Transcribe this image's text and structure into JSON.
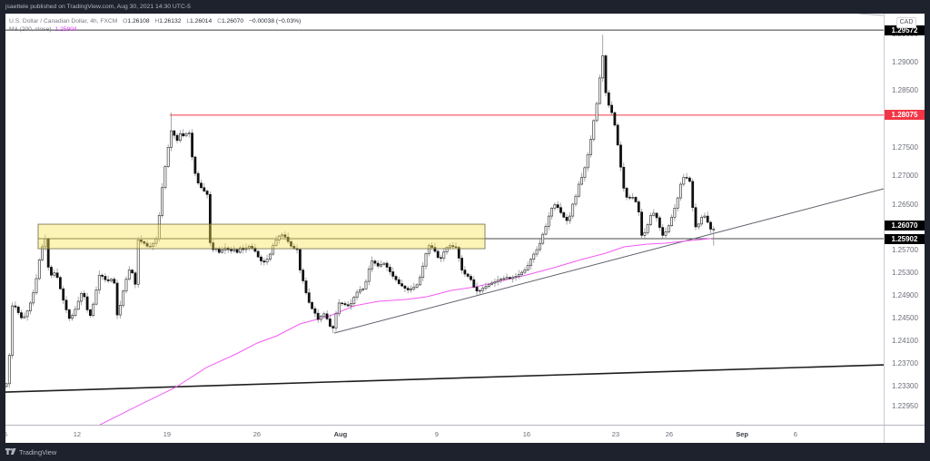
{
  "header": {
    "published": "jsaettele published on TradingView.com, Aug 30, 2021 14:30 UTC-5"
  },
  "legend": {
    "symbol": "U.S. Dollar / Canadian Dollar, 4h, FXCM",
    "ohlc": [
      {
        "k": "O",
        "v": "1.26108"
      },
      {
        "k": "H",
        "v": "1.26132"
      },
      {
        "k": "L",
        "v": "1.26014"
      },
      {
        "k": "C",
        "v": "1.26070"
      }
    ],
    "change": "−0.00038 (−0.03%)",
    "ma_label": "MA (200, close)",
    "ma_value": "1.25904"
  },
  "currency": "CAD",
  "footer": {
    "brand": "TradingView"
  },
  "colors": {
    "frame": "#1e222d",
    "up_body": "#ffffff",
    "up_border": "#222222",
    "down_body": "#111111",
    "wick": "#8f929b",
    "ma": "#f45af4",
    "resistance": "#f23645"
  },
  "chart_data": {
    "type": "candlestick",
    "title": "U.S. Dollar / Canadian Dollar, 4h, FXCM",
    "timeframe": "4h",
    "last": {
      "open": 1.26108,
      "high": 1.26132,
      "low": 1.26014,
      "close": 1.2607,
      "change": -0.00038,
      "change_pct": -0.03
    },
    "ylim": [
      1.22629,
      1.29862
    ],
    "xlim_bars": [
      -0.3,
      292.73
    ],
    "price_base": 1.2,
    "pip": 0.0001,
    "first_open_pips": 330,
    "closes_pips": [
      335,
      385,
      472,
      470,
      460,
      451,
      453,
      463,
      477,
      495,
      520,
      553,
      576,
      590,
      540,
      526,
      530,
      522,
      502,
      482,
      465,
      450,
      455,
      466,
      480,
      494,
      488,
      465,
      455,
      475,
      500,
      526,
      524,
      518,
      516,
      519,
      512,
      456,
      473,
      498,
      519,
      535,
      530,
      510,
      588,
      585,
      582,
      577,
      577,
      582,
      590,
      631,
      680,
      717,
      751,
      780,
      772,
      763,
      775,
      771,
      775,
      776,
      734,
      705,
      688,
      680,
      674,
      668,
      583,
      571,
      573,
      566,
      570,
      574,
      571,
      569,
      571,
      566,
      574,
      571,
      574,
      577,
      574,
      568,
      558,
      551,
      549,
      554,
      563,
      578,
      588,
      595,
      597,
      593,
      585,
      577,
      573,
      571,
      535,
      516,
      495,
      478,
      467,
      459,
      448,
      454,
      458,
      449,
      436,
      433,
      458,
      477,
      476,
      474,
      472,
      476,
      487,
      496,
      500,
      502,
      515,
      537,
      551,
      547,
      542,
      545,
      547,
      540,
      532,
      524,
      518,
      511,
      507,
      503,
      500,
      502,
      505,
      509,
      522,
      542,
      564,
      578,
      575,
      568,
      557,
      556,
      567,
      575,
      578,
      576,
      575,
      556,
      535,
      528,
      524,
      518,
      505,
      498,
      499,
      503,
      506,
      510,
      512,
      514,
      517,
      519,
      520,
      522,
      520,
      522,
      524,
      527,
      531,
      535,
      543,
      554,
      563,
      571,
      582,
      598,
      612,
      630,
      644,
      650,
      645,
      636,
      628,
      622,
      630,
      651,
      665,
      686,
      698,
      715,
      738,
      765,
      798,
      828,
      873,
      912,
      847,
      825,
      812,
      790,
      755,
      716,
      679,
      663,
      662,
      663,
      655,
      637,
      596,
      601,
      615,
      631,
      635,
      627,
      610,
      596,
      602,
      613,
      628,
      644,
      662,
      686,
      698,
      697,
      691,
      645,
      611,
      616,
      628,
      630,
      619,
      607,
      607
    ],
    "high_overrides": {
      "13": 598,
      "55": 812,
      "199": 949
    },
    "low_overrides": {
      "0": 328,
      "109": 424,
      "236": 578
    },
    "indicators": [
      {
        "name": "MA (200, close)",
        "value": 1.25904,
        "color": "#f45af4",
        "points": [
          [
            31.2,
            1.22628
          ],
          [
            43.3,
            1.22947
          ],
          [
            56.4,
            1.23283
          ],
          [
            66.7,
            1.23634
          ],
          [
            76.7,
            1.23874
          ],
          [
            83.6,
            1.24065
          ],
          [
            90.3,
            1.24193
          ],
          [
            97.9,
            1.24401
          ],
          [
            107.9,
            1.24544
          ],
          [
            116.1,
            1.2472
          ],
          [
            124.2,
            1.248
          ],
          [
            133.3,
            1.24832
          ],
          [
            140.3,
            1.2488
          ],
          [
            148.5,
            1.24992
          ],
          [
            156.4,
            1.25055
          ],
          [
            164.5,
            1.25151
          ],
          [
            173.6,
            1.25263
          ],
          [
            182.7,
            1.25391
          ],
          [
            191.8,
            1.25535
          ],
          [
            200,
            1.25646
          ],
          [
            206.1,
            1.25758
          ],
          [
            213.9,
            1.25806
          ],
          [
            220,
            1.25822
          ],
          [
            228.2,
            1.2587
          ],
          [
            235.2,
            1.25904
          ]
        ]
      }
    ],
    "drawings": {
      "horizontal_lines": [
        {
          "name": "high-line",
          "price": 1.29572,
          "from_bar": -0.3,
          "color": "#3c3c3c",
          "width": 1
        },
        {
          "name": "resistance-line",
          "price": 1.28075,
          "from_bar": 54.5,
          "color": "#f23645",
          "width": 1
        },
        {
          "name": "support-line",
          "price": 1.25902,
          "from_bar": 10.6,
          "color": "#4a4a4a",
          "width": 1
        }
      ],
      "trend_lines": [
        {
          "name": "rising-trendline",
          "from": [
            109.4,
            1.24241
          ],
          "to": [
            292.73,
            1.2678
          ],
          "color": "#5d606b",
          "width": 1
        },
        {
          "name": "long-term-trendline",
          "from": [
            -0.3,
            1.23203
          ],
          "to": [
            292.73,
            1.23682
          ],
          "color": "#1e1e1e",
          "width": 1.6
        },
        {
          "name": "upper-faint-line",
          "from": [
            284.4,
            1.29862
          ],
          "to": [
            292.73,
            1.2983
          ],
          "color": "#b2b5be",
          "width": 1
        }
      ],
      "rectangles": [
        {
          "name": "supply-demand-zone",
          "from_bar": 10.6,
          "to_bar": 159.7,
          "top": 1.26157,
          "bottom": 1.25726,
          "fill": "rgba(248,226,80,0.42)",
          "stroke": "#6e6b45"
        }
      ]
    },
    "price_axis": {
      "ticks": [
        "1.29500",
        "1.29000",
        "1.28500",
        "1.27500",
        "1.27000",
        "1.26500",
        "1.25700",
        "1.25300",
        "1.24900",
        "1.24500",
        "1.24100",
        "1.23700",
        "1.23300",
        "1.22950"
      ],
      "markers": [
        {
          "label": "1.29572",
          "price": 1.29572,
          "bg": "#000000",
          "fg": "#ffffff",
          "dy": 0
        },
        {
          "label": "1.28075",
          "price": 1.28075,
          "bg": "#f23645",
          "fg": "#ffffff",
          "dy": 0
        },
        {
          "label": "1.26070",
          "price": 1.2607,
          "bg": "#000000",
          "fg": "#ffffff",
          "dy": -4
        },
        {
          "label": "1.25902",
          "price": 1.25902,
          "bg": "#000000",
          "fg": "#ffffff",
          "dy": 0
        }
      ]
    },
    "time_axis": {
      "ticks": [
        {
          "label": "5",
          "bar": -0.3,
          "bold": false
        },
        {
          "label": "12",
          "bar": 23.6,
          "bold": false
        },
        {
          "label": "19",
          "bar": 53.6,
          "bold": false
        },
        {
          "label": "26",
          "bar": 83.6,
          "bold": false
        },
        {
          "label": "Aug",
          "bar": 111.5,
          "bold": true
        },
        {
          "label": "9",
          "bar": 143.6,
          "bold": false
        },
        {
          "label": "16",
          "bar": 173.6,
          "bold": false
        },
        {
          "label": "23",
          "bar": 203.3,
          "bold": false
        },
        {
          "label": "26",
          "bar": 221.2,
          "bold": false
        },
        {
          "label": "Sep",
          "bar": 245.5,
          "bold": true
        },
        {
          "label": "6",
          "bar": 263.3,
          "bold": false
        }
      ]
    }
  }
}
